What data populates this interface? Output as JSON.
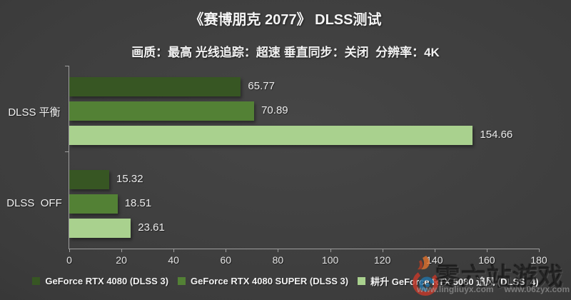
{
  "title": "《赛博朋克 2077》 DLSS测试",
  "subtitle": "画质：最高 光线追踪：超速 垂直同步：关闭  分辨率：4K",
  "chart_data": {
    "type": "bar",
    "orientation": "horizontal",
    "title": "《赛博朋克 2077》 DLSS测试",
    "subtitle": "画质：最高 光线追踪：超速 垂直同步：关闭  分辨率：4K",
    "categories": [
      "DLSS 平衡",
      "DLSS  OFF"
    ],
    "series": [
      {
        "name": "GeForce RTX 4080 (DLSS 3)",
        "color": "#375623",
        "values": [
          65.77,
          15.32
        ]
      },
      {
        "name": "GeForce RTX 4080 SUPER (DLSS 3)",
        "color": "#538135",
        "values": [
          70.89,
          18.51
        ]
      },
      {
        "name": "耕升 GeForce RTX 5080 追风 (DLSS  4)",
        "color": "#A9D18E",
        "values": [
          154.66,
          23.61
        ]
      }
    ],
    "xlim": [
      0,
      180
    ],
    "x_ticks": [
      0,
      20,
      40,
      60,
      80,
      100,
      120,
      140,
      160,
      180
    ],
    "grid": false,
    "legend_position": "bottom",
    "value_labels": true
  },
  "watermark": {
    "brand_text": "零六站游戏",
    "urls": [
      "www.lingliuyx.com",
      "www.06zyx.com"
    ]
  },
  "colors": {
    "background": "#3c3c3c",
    "text": "#f2f2f2",
    "axis": "#9e9e9e",
    "series": [
      "#375623",
      "#538135",
      "#A9D18E"
    ]
  }
}
